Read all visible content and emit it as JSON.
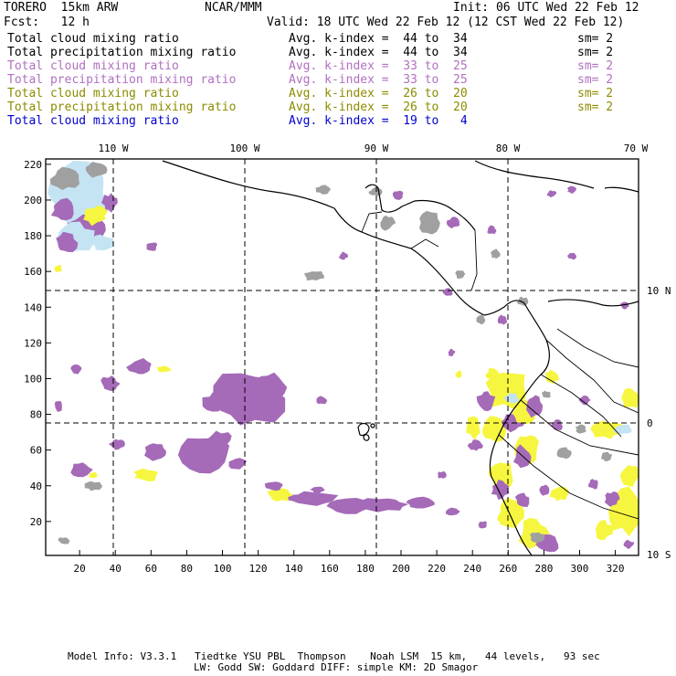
{
  "header": {
    "model": "TORERO  15km ARW",
    "org": "NCAR/MMM",
    "init": "Init: 06 UTC Wed 22 Feb 12",
    "fcst": "Fcst:   12 h",
    "valid": "Valid: 18 UTC Wed 22 Feb 12 (12 CST Wed 22 Feb 12)"
  },
  "legend": [
    {
      "field": "Total cloud mixing ratio",
      "kindex": "Avg. k-index =  44 to  34",
      "sm": "sm= 2",
      "color": "#000000"
    },
    {
      "field": "Total precipitation mixing ratio",
      "kindex": "Avg. k-index =  44 to  34",
      "sm": "sm= 2",
      "color": "#000000"
    },
    {
      "field": "Total cloud mixing ratio",
      "kindex": "Avg. k-index =  33 to  25",
      "sm": "sm= 2",
      "color": "#b070c0"
    },
    {
      "field": "Total precipitation mixing ratio",
      "kindex": "Avg. k-index =  33 to  25",
      "sm": "sm= 2",
      "color": "#b070c0"
    },
    {
      "field": "Total cloud mixing ratio",
      "kindex": "Avg. k-index =  26 to  20",
      "sm": "sm= 2",
      "color": "#8c8c00"
    },
    {
      "field": "Total precipitation mixing ratio",
      "kindex": "Avg. k-index =  26 to  20",
      "sm": "sm= 2",
      "color": "#8c8c00"
    },
    {
      "field": "Total cloud mixing ratio",
      "kindex": "Avg. k-index =  19 to   4",
      "sm": "",
      "color": "#0000cc"
    }
  ],
  "map": {
    "lon_labels": [
      "110 W",
      "100 W",
      "90 W",
      "80 W",
      "70 W"
    ],
    "lat_labels": [
      "10 N",
      "0",
      "10 S"
    ],
    "y_ticks": [
      "220",
      "200",
      "180",
      "160",
      "140",
      "120",
      "100",
      "80",
      "60",
      "40",
      "20"
    ],
    "x_ticks": [
      "20",
      "40",
      "60",
      "80",
      "100",
      "120",
      "140",
      "160",
      "180",
      "200",
      "220",
      "240",
      "260",
      "280",
      "300",
      "320"
    ],
    "colors": {
      "gray": "#a0a0a0",
      "purple": "#a56ab8",
      "yellow": "#f6f640",
      "lightblue": "#c4e4f4"
    }
  },
  "footer": {
    "line1": "Model Info: V3.3.1   Tiedtke YSU PBL  Thompson    Noah LSM  15 km,   44 levels,   93 sec",
    "line2": "LW: Godd SW: Goddard DIFF: simple KM: 2D Smagor"
  }
}
